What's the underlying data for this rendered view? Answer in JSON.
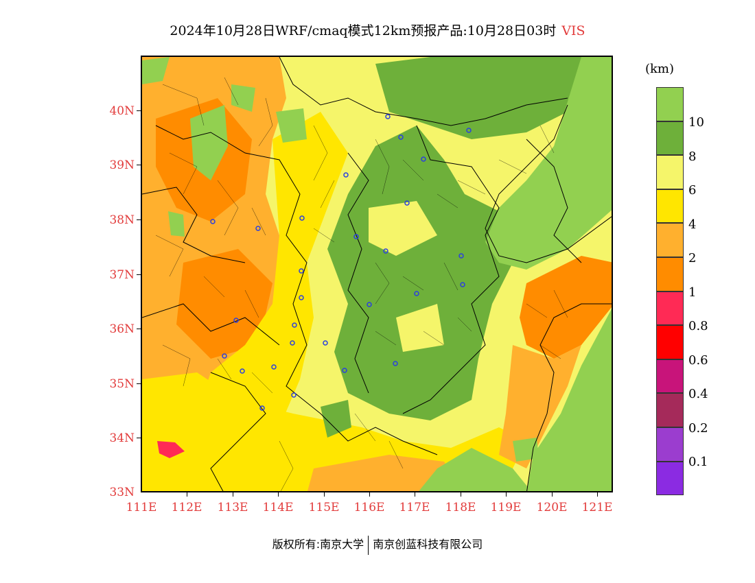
{
  "title": {
    "main": "2024年10月28日WRF/cmaq模式12km预报产品:10月28日03时",
    "variable": "VIS"
  },
  "colorbar": {
    "unit": "(km)",
    "colors": [
      "#8b2be2",
      "#9b3dcf",
      "#a52a5a",
      "#c8147a",
      "#ff0000",
      "#ff2a55",
      "#ff8c00",
      "#ffb02e",
      "#ffe600",
      "#f5f56a",
      "#6eb03a",
      "#92d050"
    ],
    "labels": [
      "0.1",
      "0.2",
      "0.4",
      "0.6",
      "0.8",
      "1",
      "2",
      "4",
      "6",
      "8",
      "10"
    ]
  },
  "axes": {
    "lat_labels": [
      "40N",
      "39N",
      "38N",
      "37N",
      "36N",
      "35N",
      "34N",
      "33N"
    ],
    "lon_labels": [
      "111E",
      "112E",
      "113E",
      "114E",
      "115E",
      "116E",
      "117E",
      "118E",
      "119E",
      "120E",
      "121E"
    ],
    "lat_range": [
      33,
      41
    ],
    "lon_range": [
      111,
      121.4
    ]
  },
  "map_colors": {
    "sea": "#92d050",
    "orange": "#ff8c00",
    "light_orange": "#ffb02e",
    "yellow": "#ffe600",
    "pale_yellow": "#f5f56a",
    "green": "#6eb03a",
    "light_green": "#92d050",
    "red": "#ff2a55",
    "city_marker": "#2a3fe0"
  },
  "copyright": {
    "left": "版权所有:南京大学",
    "right": "南京创蓝科技有限公司"
  }
}
